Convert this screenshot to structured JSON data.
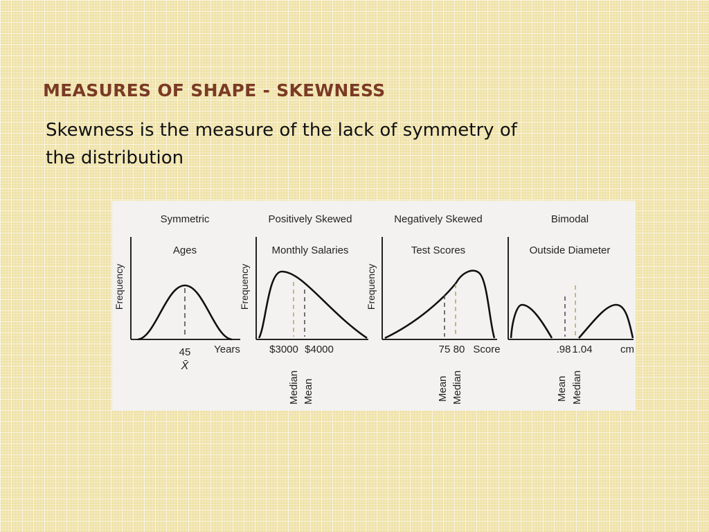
{
  "slide": {
    "title": "MEASURES OF SHAPE - SKEWNESS",
    "subtitle": "Skewness is the measure of the lack of symmetry of the distribution"
  },
  "figure": {
    "panels": [
      {
        "heading": "Symmetric",
        "subheading": "Ages",
        "ylabel": "Frequency",
        "unit": "Years",
        "ticks": [
          "45",
          "X̄"
        ],
        "vertical_labels": []
      },
      {
        "heading": "Positively Skewed",
        "subheading": "Monthly Salaries",
        "ylabel": "Frequency",
        "unit": "",
        "ticks": [
          "$3000",
          "$4000"
        ],
        "vertical_labels": [
          "Median",
          "Mean"
        ]
      },
      {
        "heading": "Negatively Skewed",
        "subheading": "Test Scores",
        "ylabel": "Frequency",
        "unit": "Score",
        "ticks": [
          "75",
          "80"
        ],
        "vertical_labels": [
          "Mean",
          "Median"
        ]
      },
      {
        "heading": "Bimodal",
        "subheading": "Outside Diameter",
        "ylabel": "",
        "unit": "cm",
        "ticks": [
          ".98",
          "1.04"
        ],
        "vertical_labels": [
          "Mean",
          "Median"
        ]
      }
    ]
  }
}
